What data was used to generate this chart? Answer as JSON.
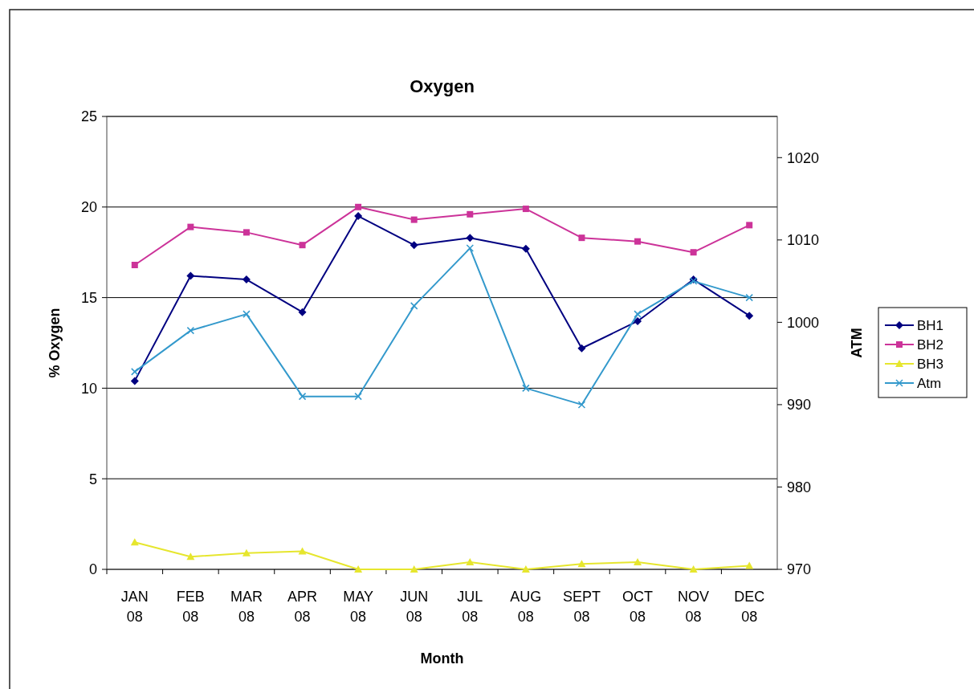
{
  "chart_data": {
    "type": "line",
    "title": "Oxygen",
    "xlabel": "Month",
    "ylabel": "% Oxygen",
    "y2label": "ATM",
    "categories": [
      "JAN 08",
      "FEB 08",
      "MAR 08",
      "APR 08",
      "MAY 08",
      "JUN 08",
      "JUL 08",
      "AUG 08",
      "SEPT 08",
      "OCT 08",
      "NOV 08",
      "DEC 08"
    ],
    "series": [
      {
        "name": "BH1",
        "color": "#000080",
        "marker": "diamond",
        "values": [
          10.4,
          16.2,
          16,
          14.2,
          19.5,
          17.9,
          18.3,
          17.7,
          12.2,
          13.7,
          16,
          14
        ]
      },
      {
        "name": "BH2",
        "color": "#cc3399",
        "marker": "square",
        "values": [
          16.8,
          18.9,
          18.6,
          17.9,
          20,
          19.3,
          19.6,
          19.9,
          18.3,
          18.1,
          17.5,
          19
        ]
      },
      {
        "name": "BH3",
        "color": "#e6e62e",
        "marker": "triangle",
        "values": [
          1.5,
          0.7,
          0.9,
          1,
          0,
          0,
          0.4,
          0,
          0.3,
          0.4,
          0,
          0.2
        ]
      },
      {
        "name": "Atm",
        "color": "#3399cc",
        "marker": "cross",
        "axis": "y2",
        "values": [
          994,
          999,
          1001,
          991,
          991,
          1002,
          1009,
          992,
          990,
          1001,
          1005,
          1003
        ]
      }
    ],
    "ylim": [
      0,
      25
    ],
    "yticks": [
      0,
      5,
      10,
      15,
      20,
      25
    ],
    "y2lim": [
      970,
      1025
    ],
    "y2ticks": [
      970,
      980,
      990,
      1000,
      1010,
      1020
    ],
    "grid": "y",
    "legend": "right"
  }
}
